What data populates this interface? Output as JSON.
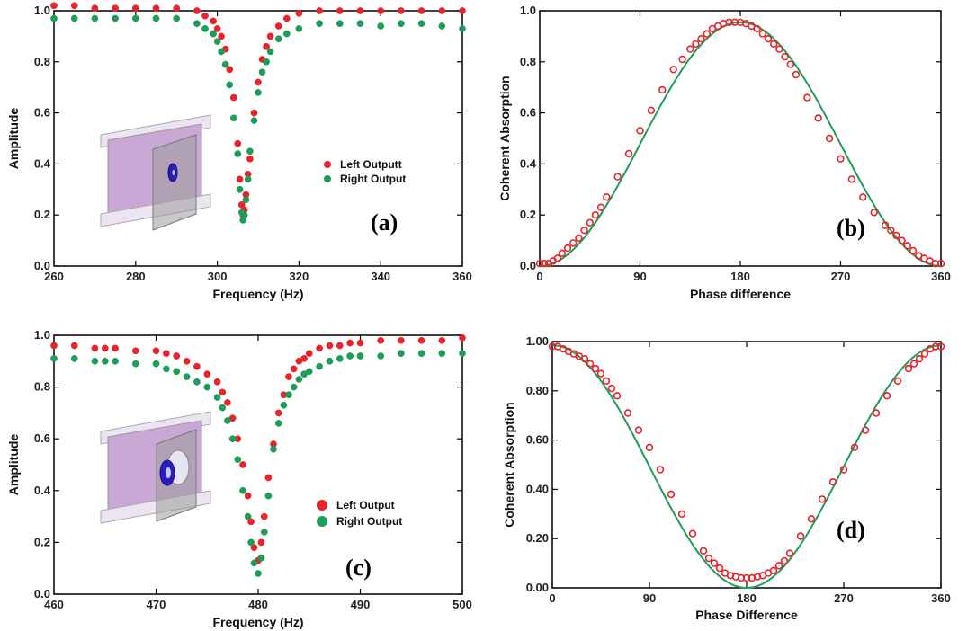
{
  "chart_data": [
    {
      "type": "scatter",
      "panel_label": "(a)",
      "xlabel": "Frequency (Hz)",
      "ylabel": "Amplitude",
      "xlim": [
        260,
        360
      ],
      "ylim": [
        0,
        1.0
      ],
      "xticks": [
        260,
        280,
        300,
        320,
        340,
        360
      ],
      "xtick_labels": [
        "260",
        "280",
        "300",
        "320",
        "340",
        "360"
      ],
      "yticks": [
        0,
        0.2,
        0.4,
        0.6,
        0.8,
        1.0
      ],
      "ytick_labels": [
        "0.0",
        "0.2",
        "0.4",
        "0.6",
        "0.8",
        "1.0"
      ],
      "legend_position": "right",
      "series": [
        {
          "name": "Left Outputt",
          "color": "#e8232a",
          "marker": "filled-circle",
          "x": [
            260,
            265,
            270,
            275,
            280,
            285,
            290,
            295,
            297,
            299,
            300,
            301,
            302,
            303,
            304,
            305,
            305.5,
            306,
            306.3,
            306.6,
            307,
            307.5,
            308,
            309,
            310,
            311,
            312,
            313,
            315,
            317,
            320,
            325,
            330,
            335,
            340,
            345,
            350,
            355,
            360
          ],
          "y": [
            1.02,
            1.02,
            1.01,
            1.01,
            1.01,
            1.01,
            1.01,
            1.0,
            0.98,
            0.96,
            0.93,
            0.9,
            0.85,
            0.77,
            0.66,
            0.48,
            0.34,
            0.24,
            0.2,
            0.22,
            0.28,
            0.36,
            0.42,
            0.6,
            0.72,
            0.81,
            0.86,
            0.9,
            0.94,
            0.97,
            0.99,
            1.0,
            1.0,
            1.0,
            1.0,
            1.0,
            1.0,
            1.0,
            1.0
          ]
        },
        {
          "name": "Right Output",
          "color": "#1e9c5a",
          "marker": "filled-circle",
          "x": [
            260,
            265,
            270,
            275,
            280,
            285,
            290,
            295,
            297,
            299,
            300,
            301,
            302,
            303,
            304,
            305,
            305.5,
            306,
            306.3,
            306.6,
            307,
            307.5,
            308,
            309,
            310,
            311,
            312,
            313,
            315,
            317,
            320,
            325,
            330,
            335,
            340,
            345,
            350,
            355,
            360
          ],
          "y": [
            0.97,
            0.97,
            0.97,
            0.97,
            0.97,
            0.97,
            0.97,
            0.95,
            0.93,
            0.91,
            0.88,
            0.84,
            0.79,
            0.71,
            0.58,
            0.44,
            0.3,
            0.21,
            0.18,
            0.2,
            0.26,
            0.34,
            0.45,
            0.57,
            0.68,
            0.76,
            0.8,
            0.84,
            0.89,
            0.91,
            0.93,
            0.95,
            0.95,
            0.95,
            0.94,
            0.95,
            0.95,
            0.94,
            0.93
          ]
        }
      ]
    },
    {
      "type": "scatter",
      "panel_label": "(b)",
      "xlabel": "Phase difference",
      "ylabel": "Coherent Absorption",
      "xlim": [
        0,
        360
      ],
      "ylim": [
        0,
        1.0
      ],
      "xticks": [
        0,
        90,
        180,
        270,
        360
      ],
      "xtick_labels": [
        "0",
        "90",
        "180",
        "270",
        "360"
      ],
      "yticks": [
        0,
        0.2,
        0.4,
        0.6,
        0.8,
        1.0
      ],
      "ytick_labels": [
        "0.0",
        "0.2",
        "0.4",
        "0.6",
        "0.8",
        "1.0"
      ],
      "curve": {
        "color": "#1e9c5a",
        "formula": "cosine-peak",
        "amplitude": 0.955,
        "offset": 0.0,
        "peak_at": 180
      },
      "series": [
        {
          "color": "#e8232a",
          "marker": "open-circle",
          "x": [
            0,
            4,
            8,
            12,
            16,
            20,
            25,
            30,
            35,
            40,
            45,
            50,
            55,
            60,
            70,
            80,
            90,
            100,
            110,
            120,
            128,
            135,
            140,
            145,
            150,
            155,
            160,
            165,
            170,
            175,
            180,
            185,
            190,
            195,
            200,
            205,
            210,
            215,
            220,
            225,
            230,
            240,
            250,
            260,
            270,
            280,
            290,
            300,
            310,
            315,
            320,
            325,
            330,
            335,
            340,
            345,
            350,
            355,
            360
          ],
          "y": [
            0.01,
            0.01,
            0.01,
            0.02,
            0.03,
            0.05,
            0.07,
            0.09,
            0.11,
            0.14,
            0.17,
            0.2,
            0.23,
            0.27,
            0.35,
            0.44,
            0.53,
            0.61,
            0.69,
            0.77,
            0.81,
            0.85,
            0.87,
            0.89,
            0.91,
            0.93,
            0.94,
            0.95,
            0.955,
            0.955,
            0.955,
            0.95,
            0.94,
            0.93,
            0.91,
            0.89,
            0.87,
            0.85,
            0.82,
            0.79,
            0.75,
            0.66,
            0.58,
            0.5,
            0.42,
            0.34,
            0.27,
            0.21,
            0.16,
            0.14,
            0.12,
            0.1,
            0.08,
            0.06,
            0.04,
            0.03,
            0.02,
            0.01,
            0.01
          ]
        }
      ]
    },
    {
      "type": "scatter",
      "panel_label": "(c)",
      "xlabel": "Frequency (Hz)",
      "ylabel": "Amplitude",
      "xlim": [
        460,
        500
      ],
      "ylim": [
        0,
        1.0
      ],
      "xticks": [
        460,
        470,
        480,
        490,
        500
      ],
      "xtick_labels": [
        "460",
        "470",
        "480",
        "490",
        "500"
      ],
      "yticks": [
        0,
        0.2,
        0.4,
        0.6,
        0.8,
        1.0
      ],
      "ytick_labels": [
        "0.0",
        "0.2",
        "0.4",
        "0.6",
        "0.8",
        "1.0"
      ],
      "legend_position": "bottom-right",
      "series": [
        {
          "name": "Left Output",
          "color": "#e8232a",
          "marker": "filled-circle",
          "x": [
            460,
            462,
            464,
            465,
            466,
            468,
            470,
            471,
            472,
            473,
            474,
            475,
            476,
            476.5,
            477,
            477.5,
            478,
            478.5,
            479,
            479.3,
            479.6,
            480,
            480.3,
            480.6,
            481,
            481.5,
            482,
            482.5,
            483,
            483.5,
            484,
            484.5,
            485,
            486,
            487,
            488,
            489,
            490,
            492,
            494,
            496,
            498,
            500
          ],
          "y": [
            0.96,
            0.96,
            0.95,
            0.95,
            0.95,
            0.94,
            0.94,
            0.93,
            0.92,
            0.9,
            0.88,
            0.85,
            0.82,
            0.78,
            0.74,
            0.68,
            0.6,
            0.5,
            0.38,
            0.28,
            0.18,
            0.13,
            0.2,
            0.3,
            0.45,
            0.58,
            0.7,
            0.77,
            0.84,
            0.87,
            0.9,
            0.91,
            0.93,
            0.95,
            0.96,
            0.96,
            0.97,
            0.97,
            0.98,
            0.98,
            0.98,
            0.98,
            0.99
          ]
        },
        {
          "name": "Right Output",
          "color": "#1e9c5a",
          "marker": "filled-circle",
          "x": [
            460,
            462,
            464,
            465,
            466,
            468,
            470,
            471,
            472,
            473,
            474,
            475,
            476,
            476.5,
            477,
            477.5,
            478,
            478.5,
            479,
            479.3,
            479.6,
            480,
            480.3,
            480.6,
            481,
            481.5,
            482,
            482.5,
            483,
            483.5,
            484,
            484.5,
            485,
            486,
            487,
            488,
            489,
            490,
            492,
            494,
            496,
            498,
            500
          ],
          "y": [
            0.91,
            0.91,
            0.9,
            0.9,
            0.9,
            0.89,
            0.89,
            0.87,
            0.86,
            0.84,
            0.82,
            0.8,
            0.76,
            0.72,
            0.67,
            0.6,
            0.52,
            0.4,
            0.3,
            0.2,
            0.12,
            0.08,
            0.14,
            0.24,
            0.38,
            0.56,
            0.66,
            0.73,
            0.77,
            0.8,
            0.83,
            0.85,
            0.86,
            0.88,
            0.9,
            0.91,
            0.92,
            0.92,
            0.92,
            0.93,
            0.93,
            0.93,
            0.93
          ]
        }
      ]
    },
    {
      "type": "scatter",
      "panel_label": "(d)",
      "xlabel": "Phase Difference",
      "ylabel": "Coherent Absorption",
      "xlim": [
        0,
        360
      ],
      "ylim": [
        0,
        1.0
      ],
      "xticks": [
        0,
        90,
        180,
        270,
        360
      ],
      "xtick_labels": [
        "0",
        "90",
        "180",
        "270",
        "360"
      ],
      "yticks": [
        0,
        0.2,
        0.4,
        0.6,
        0.8,
        1.0
      ],
      "ytick_labels": [
        "0.00",
        "0.20",
        "0.40",
        "0.60",
        "0.80",
        "1.00"
      ],
      "curve": {
        "color": "#1e9c5a",
        "formula": "cosine-dip",
        "amplitude": 0.985,
        "offset": 0.0,
        "dip_at": 180
      },
      "series": [
        {
          "color": "#e8232a",
          "marker": "open-circle",
          "x": [
            0,
            5,
            10,
            15,
            20,
            25,
            30,
            35,
            40,
            45,
            50,
            55,
            60,
            70,
            80,
            90,
            100,
            110,
            120,
            130,
            140,
            145,
            150,
            155,
            160,
            165,
            170,
            175,
            180,
            185,
            190,
            195,
            200,
            205,
            210,
            215,
            220,
            230,
            240,
            250,
            260,
            270,
            280,
            290,
            300,
            310,
            320,
            330,
            335,
            340,
            345,
            350,
            355,
            360
          ],
          "y": [
            0.98,
            0.98,
            0.97,
            0.96,
            0.95,
            0.94,
            0.93,
            0.91,
            0.89,
            0.87,
            0.84,
            0.81,
            0.78,
            0.71,
            0.64,
            0.57,
            0.48,
            0.38,
            0.3,
            0.22,
            0.15,
            0.12,
            0.1,
            0.08,
            0.06,
            0.05,
            0.045,
            0.04,
            0.04,
            0.04,
            0.045,
            0.05,
            0.06,
            0.07,
            0.09,
            0.11,
            0.14,
            0.21,
            0.28,
            0.36,
            0.43,
            0.48,
            0.57,
            0.64,
            0.71,
            0.78,
            0.84,
            0.89,
            0.91,
            0.93,
            0.95,
            0.97,
            0.98,
            0.98
          ]
        }
      ]
    }
  ]
}
